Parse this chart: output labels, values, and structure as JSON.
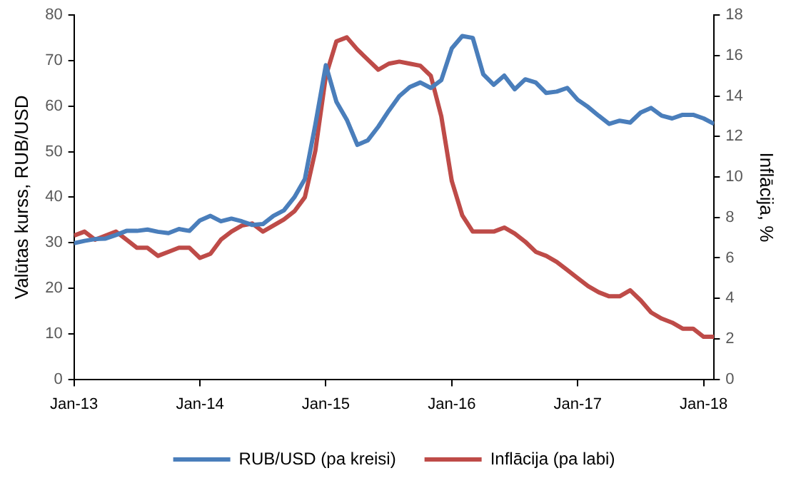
{
  "chart_data": {
    "type": "line",
    "x": [
      "2013-01",
      "2013-02",
      "2013-03",
      "2013-04",
      "2013-05",
      "2013-06",
      "2013-07",
      "2013-08",
      "2013-09",
      "2013-10",
      "2013-11",
      "2013-12",
      "2014-01",
      "2014-02",
      "2014-03",
      "2014-04",
      "2014-05",
      "2014-06",
      "2014-07",
      "2014-08",
      "2014-09",
      "2014-10",
      "2014-11",
      "2014-12",
      "2015-01",
      "2015-02",
      "2015-03",
      "2015-04",
      "2015-05",
      "2015-06",
      "2015-07",
      "2015-08",
      "2015-09",
      "2015-10",
      "2015-11",
      "2015-12",
      "2016-01",
      "2016-02",
      "2016-03",
      "2016-04",
      "2016-05",
      "2016-06",
      "2016-07",
      "2016-08",
      "2016-09",
      "2016-10",
      "2016-11",
      "2016-12",
      "2017-01",
      "2017-02",
      "2017-03",
      "2017-04",
      "2017-05",
      "2017-06",
      "2017-07",
      "2017-08",
      "2017-09",
      "2017-10",
      "2017-11",
      "2017-12",
      "2018-01",
      "2018-02"
    ],
    "series": [
      {
        "name": "RUB/USD (pa kreisi)",
        "color": "#4a7ebb",
        "values": [
          29.9,
          30.4,
          30.8,
          30.9,
          31.7,
          32.6,
          32.6,
          32.9,
          32.4,
          32.1,
          33.0,
          32.6,
          34.9,
          35.9,
          34.7,
          35.3,
          34.7,
          33.9,
          34.1,
          35.9,
          37.1,
          40.0,
          44.0,
          56.0,
          69.0,
          61.0,
          57.0,
          51.5,
          52.5,
          55.5,
          59.0,
          62.2,
          64.2,
          65.2,
          64.0,
          65.7,
          72.7,
          75.4,
          75.0,
          67.0,
          64.7,
          66.7,
          63.7,
          65.9,
          65.2,
          62.9,
          63.2,
          64.0,
          61.4,
          59.8,
          57.9,
          56.1,
          56.8,
          56.4,
          58.6,
          59.6,
          57.9,
          57.3,
          58.1,
          58.1,
          57.3,
          56.1
        ]
      },
      {
        "name": "Inflācija (pa labi)",
        "color": "#be4b48",
        "axis": "y2",
        "values": [
          7.1,
          7.3,
          6.9,
          7.1,
          7.3,
          6.9,
          6.5,
          6.5,
          6.1,
          6.3,
          6.5,
          6.5,
          6.0,
          6.2,
          6.9,
          7.3,
          7.6,
          7.7,
          7.3,
          7.6,
          7.9,
          8.3,
          9.0,
          11.3,
          15.0,
          16.7,
          16.9,
          16.3,
          15.8,
          15.3,
          15.6,
          15.7,
          15.6,
          15.5,
          15.0,
          13.0,
          9.8,
          8.1,
          7.3,
          7.3,
          7.3,
          7.5,
          7.2,
          6.8,
          6.3,
          6.1,
          5.8,
          5.4,
          5.0,
          4.6,
          4.3,
          4.1,
          4.1,
          4.4,
          3.9,
          3.3,
          3.0,
          2.8,
          2.5,
          2.5,
          2.1,
          2.1
        ]
      }
    ],
    "ylabel": "Valūtas kurss, RUB/USD",
    "y2label": "Inflācija, %",
    "ylim": [
      0,
      80
    ],
    "yticks": [
      0,
      10,
      20,
      30,
      40,
      50,
      60,
      70,
      80
    ],
    "y2lim": [
      0,
      18
    ],
    "y2ticks": [
      0,
      2,
      4,
      6,
      8,
      10,
      12,
      14,
      16,
      18
    ],
    "xlim": [
      "2013-01",
      "2018-02"
    ],
    "xticks": [
      {
        "value": "2013-01",
        "label": "Jan-13"
      },
      {
        "value": "2014-01",
        "label": "Jan-14"
      },
      {
        "value": "2015-01",
        "label": "Jan-15"
      },
      {
        "value": "2016-01",
        "label": "Jan-16"
      },
      {
        "value": "2017-01",
        "label": "Jan-17"
      },
      {
        "value": "2018-01",
        "label": "Jan-18"
      }
    ],
    "legend": "bottom",
    "grid": false,
    "marker": "none",
    "line_style": "solid"
  }
}
